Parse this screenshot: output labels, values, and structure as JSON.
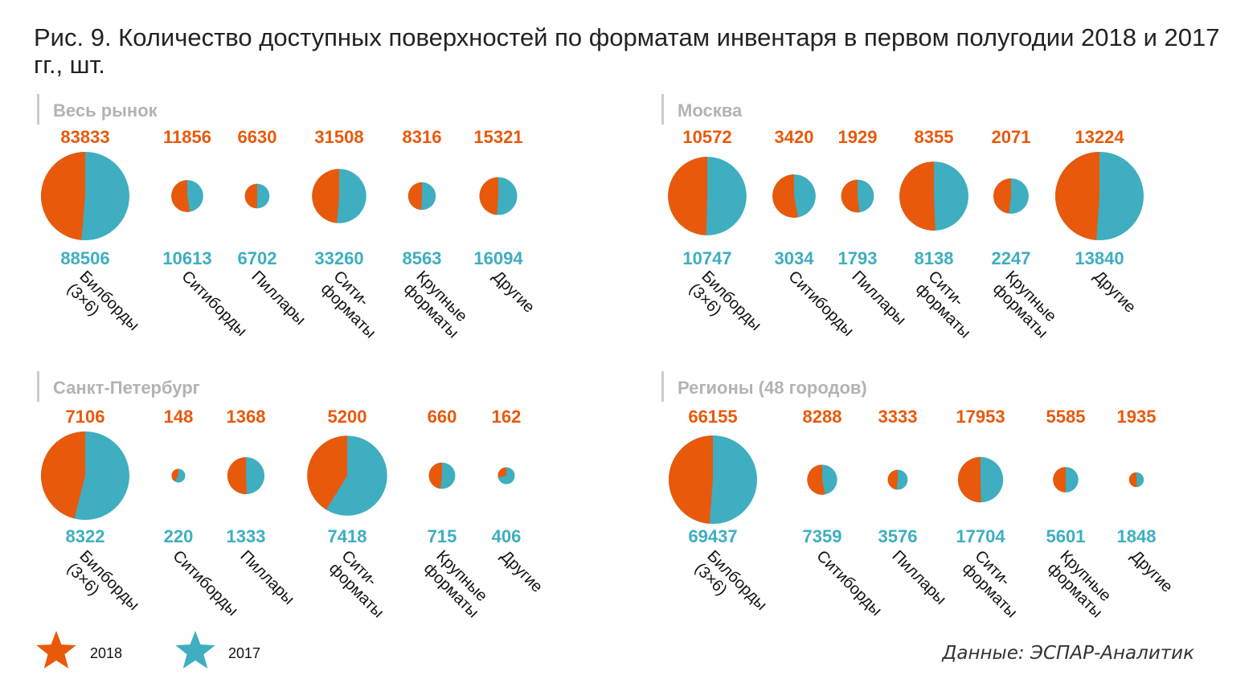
{
  "title": "Рис. 9. Количество доступных поверхностей по форматам инвентаря в первом полугодии 2018 и 2017 гг., шт.",
  "source": "Данные: ЭСПАР-Аналитик",
  "colors": {
    "y2018": "#e8590c",
    "y2017": "#3eaec0",
    "panel_title": "#b3b3b3"
  },
  "legend": [
    {
      "label": "2018",
      "color": "#e8590c",
      "icon": "star-icon"
    },
    {
      "label": "2017",
      "color": "#3eaec0",
      "icon": "star-icon"
    }
  ],
  "chart_data": [
    {
      "type": "pie",
      "title": "Весь рынок",
      "categories": [
        "Билборды (3×6)",
        "Ситиборды",
        "Пиллары",
        "Сити-форматы",
        "Крупные форматы",
        "Другие"
      ],
      "series": [
        {
          "name": "2018",
          "values": [
            83833,
            11856,
            6630,
            31508,
            8316,
            15321
          ]
        },
        {
          "name": "2017",
          "values": [
            88506,
            10613,
            6702,
            33260,
            8563,
            16094
          ]
        }
      ]
    },
    {
      "type": "pie",
      "title": "Москва",
      "categories": [
        "Билборды (3×6)",
        "Ситиборды",
        "Пиллары",
        "Сити-форматы",
        "Крупные форматы",
        "Другие"
      ],
      "series": [
        {
          "name": "2018",
          "values": [
            10572,
            3420,
            1929,
            8355,
            2071,
            13224
          ]
        },
        {
          "name": "2017",
          "values": [
            10747,
            3034,
            1793,
            8138,
            2247,
            13840
          ]
        }
      ]
    },
    {
      "type": "pie",
      "title": "Санкт-Петербург",
      "categories": [
        "Билборды (3×6)",
        "Ситиборды",
        "Пиллары",
        "Сити-форматы",
        "Крупные форматы",
        "Другие"
      ],
      "series": [
        {
          "name": "2018",
          "values": [
            7106,
            148,
            1368,
            5200,
            660,
            162
          ]
        },
        {
          "name": "2017",
          "values": [
            8322,
            220,
            1333,
            7418,
            715,
            406
          ]
        }
      ]
    },
    {
      "type": "pie",
      "title": "Регионы (48 городов)",
      "categories": [
        "Билборды (3×6)",
        "Ситиборды",
        "Пиллары",
        "Сити-форматы",
        "Крупные форматы",
        "Другие"
      ],
      "series": [
        {
          "name": "2018",
          "values": [
            66155,
            8288,
            3333,
            17953,
            5585,
            1935
          ]
        },
        {
          "name": "2017",
          "values": [
            69437,
            7359,
            3576,
            17704,
            5601,
            1848
          ]
        }
      ]
    }
  ]
}
